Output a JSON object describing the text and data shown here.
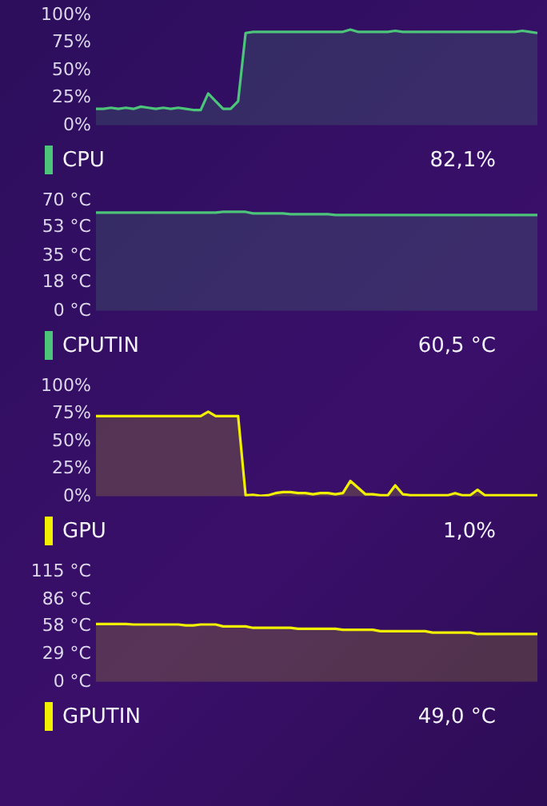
{
  "chart_data": [
    {
      "type": "area",
      "categories": [
        null,
        null,
        null,
        null,
        null,
        null,
        null,
        null,
        null,
        null,
        null,
        null,
        null,
        null,
        null,
        null,
        null,
        null,
        null,
        null,
        null,
        null,
        null,
        null,
        null,
        null,
        null,
        null,
        null,
        null,
        null,
        null,
        null,
        null,
        null,
        null,
        null,
        null,
        null,
        null,
        null,
        null,
        null,
        null,
        null,
        null,
        null,
        null,
        null,
        null,
        null,
        null,
        null,
        null,
        null,
        null,
        null,
        null,
        null,
        null
      ],
      "ylim": [
        0,
        100
      ],
      "yticks": [
        {
          "value": 0,
          "label": "0%"
        },
        {
          "value": 25,
          "label": "25%"
        },
        {
          "value": 50,
          "label": "50%"
        },
        {
          "value": 75,
          "label": "75%"
        },
        {
          "value": 100,
          "label": "100%"
        }
      ],
      "legend": "bottom left",
      "annotations": [
        "82,1%"
      ],
      "series": [
        {
          "name": "CPU",
          "color": "#4cc47a",
          "values": [
            15,
            15,
            16,
            15,
            16,
            15,
            17,
            16,
            15,
            16,
            15,
            16,
            15,
            14,
            14,
            29,
            22,
            15,
            15,
            22,
            84,
            85,
            85,
            85,
            85,
            85,
            85,
            85,
            85,
            85,
            85,
            85,
            85,
            85,
            87,
            85,
            85,
            85,
            85,
            85,
            86,
            85,
            85,
            85,
            85,
            85,
            85,
            85,
            85,
            85,
            85,
            85,
            85,
            85,
            85,
            85,
            85,
            86,
            85,
            84
          ]
        }
      ]
    },
    {
      "type": "area",
      "categories": [
        null,
        null,
        null,
        null,
        null,
        null,
        null,
        null,
        null,
        null,
        null,
        null,
        null,
        null,
        null,
        null,
        null,
        null,
        null,
        null,
        null,
        null,
        null,
        null,
        null,
        null,
        null,
        null,
        null,
        null,
        null,
        null,
        null,
        null,
        null,
        null,
        null,
        null,
        null,
        null,
        null,
        null,
        null,
        null,
        null,
        null,
        null,
        null,
        null,
        null,
        null,
        null,
        null,
        null,
        null,
        null,
        null,
        null,
        null,
        null
      ],
      "ylim": [
        0,
        70
      ],
      "yticks": [
        {
          "value": 0,
          "label": "0 °C"
        },
        {
          "value": 18,
          "label": "18 °C"
        },
        {
          "value": 35,
          "label": "35 °C"
        },
        {
          "value": 53,
          "label": "53 °C"
        },
        {
          "value": 70,
          "label": "70 °C"
        }
      ],
      "legend": "bottom left",
      "annotations": [
        "60,5 °C"
      ],
      "series": [
        {
          "name": "CPUTIN",
          "color": "#4cc47a",
          "values": [
            62.5,
            62.5,
            62.5,
            62.5,
            62.5,
            62.5,
            62.5,
            62.5,
            62.5,
            62.5,
            62.5,
            62.5,
            62.5,
            62.5,
            62.5,
            62.5,
            62.5,
            63,
            63,
            63,
            63,
            62,
            62,
            62,
            62,
            62,
            61.5,
            61.5,
            61.5,
            61.5,
            61.5,
            61.5,
            61,
            61,
            61,
            61,
            61,
            61,
            61,
            61,
            61,
            61,
            61,
            61,
            61,
            61,
            61,
            61,
            61,
            61,
            61,
            61,
            61,
            61,
            61,
            61,
            61,
            61,
            61,
            61
          ]
        }
      ]
    },
    {
      "type": "area",
      "categories": [
        null,
        null,
        null,
        null,
        null,
        null,
        null,
        null,
        null,
        null,
        null,
        null,
        null,
        null,
        null,
        null,
        null,
        null,
        null,
        null,
        null,
        null,
        null,
        null,
        null,
        null,
        null,
        null,
        null,
        null,
        null,
        null,
        null,
        null,
        null,
        null,
        null,
        null,
        null,
        null,
        null,
        null,
        null,
        null,
        null,
        null,
        null,
        null,
        null,
        null,
        null,
        null,
        null,
        null,
        null,
        null,
        null,
        null,
        null,
        null
      ],
      "ylim": [
        0,
        100
      ],
      "yticks": [
        {
          "value": 0,
          "label": "0%"
        },
        {
          "value": 25,
          "label": "25%"
        },
        {
          "value": 50,
          "label": "50%"
        },
        {
          "value": 75,
          "label": "75%"
        },
        {
          "value": 100,
          "label": "100%"
        }
      ],
      "legend": "bottom left",
      "annotations": [
        "1,0%"
      ],
      "series": [
        {
          "name": "GPU",
          "color": "#f0f000",
          "values": [
            73,
            73,
            73,
            73,
            73,
            73,
            73,
            73,
            73,
            73,
            73,
            73,
            73,
            73,
            73,
            77,
            73,
            73,
            73,
            73,
            1,
            1.5,
            0.5,
            1,
            3,
            4,
            4,
            3,
            3,
            2,
            3,
            3,
            2,
            3,
            14,
            8,
            2,
            2,
            1,
            1,
            10,
            2,
            1,
            1,
            1,
            1,
            1,
            1,
            3,
            1,
            1,
            6,
            1,
            1,
            1,
            1,
            1,
            1,
            1,
            1
          ]
        }
      ]
    },
    {
      "type": "area",
      "categories": [
        null,
        null,
        null,
        null,
        null,
        null,
        null,
        null,
        null,
        null,
        null,
        null,
        null,
        null,
        null,
        null,
        null,
        null,
        null,
        null,
        null,
        null,
        null,
        null,
        null,
        null,
        null,
        null,
        null,
        null,
        null,
        null,
        null,
        null,
        null,
        null,
        null,
        null,
        null,
        null,
        null,
        null,
        null,
        null,
        null,
        null,
        null,
        null,
        null,
        null,
        null,
        null,
        null,
        null,
        null,
        null,
        null,
        null,
        null,
        null
      ],
      "ylim": [
        0,
        115
      ],
      "yticks": [
        {
          "value": 0,
          "label": "0 °C"
        },
        {
          "value": 29,
          "label": "29 °C"
        },
        {
          "value": 58,
          "label": "58 °C"
        },
        {
          "value": 86,
          "label": "86 °C"
        },
        {
          "value": 115,
          "label": "115 °C"
        }
      ],
      "legend": "bottom left",
      "annotations": [
        "49,0 °C"
      ],
      "series": [
        {
          "name": "GPUTIN",
          "color": "#f0f000",
          "values": [
            60.5,
            60.5,
            60.5,
            60.5,
            60.5,
            60,
            60,
            60,
            60,
            60,
            60,
            60,
            59,
            59,
            60,
            60,
            60,
            58,
            58,
            58,
            58,
            56.5,
            56.5,
            56.5,
            56.5,
            56.5,
            56.5,
            55.5,
            55.5,
            55.5,
            55.5,
            55.5,
            55.5,
            54.5,
            54.5,
            54.5,
            54.5,
            54.5,
            53,
            53,
            53,
            53,
            53,
            53,
            53,
            51.5,
            51.5,
            51.5,
            51.5,
            51.5,
            51.5,
            50,
            50,
            50,
            50,
            50,
            50,
            50,
            50,
            50
          ]
        }
      ]
    }
  ]
}
